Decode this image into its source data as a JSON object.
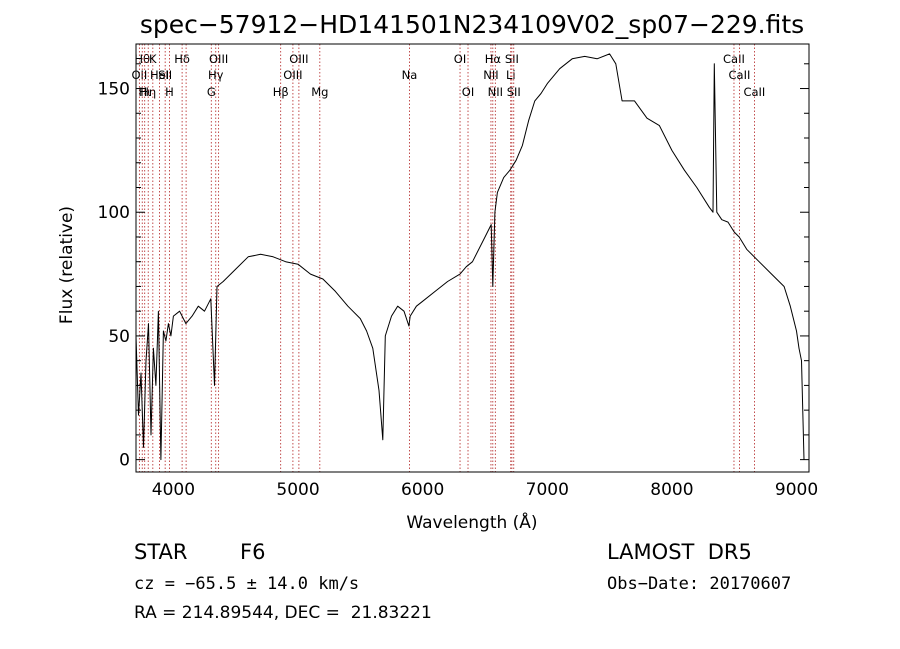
{
  "chart_data": {
    "type": "line",
    "title": "spec−57912−HD141501N234109V02_sp07−229.fits",
    "xlabel": "Wavelength (Å)",
    "ylabel": "Flux (relative)",
    "xlim": [
      3700,
      9100
    ],
    "ylim": [
      -5,
      168
    ],
    "xticks": [
      4000,
      5000,
      6000,
      7000,
      8000,
      9000
    ],
    "xtick_labels": [
      "4000",
      "5000",
      "6000",
      "7000",
      "8000",
      "9000"
    ],
    "yticks": [
      0,
      50,
      100,
      150
    ],
    "ytick_labels": [
      "0",
      "50",
      "100",
      "150"
    ],
    "grid": false,
    "line_color": "#000000",
    "marker_color": "#b22222",
    "series": [
      {
        "x": [
          3700,
          3720,
          3740,
          3760,
          3780,
          3800,
          3820,
          3840,
          3860,
          3880,
          3900,
          3920,
          3940,
          3960,
          3980,
          4000,
          4050,
          4100,
          4150,
          4200,
          4250,
          4300,
          4330,
          4350,
          4400,
          4500,
          4600,
          4700,
          4800,
          4900,
          5000,
          5100,
          5200,
          5300,
          5400,
          5500,
          5550,
          5600,
          5650,
          5680,
          5700,
          5750,
          5800,
          5850,
          5890,
          5900,
          5950,
          6000,
          6100,
          6200,
          6300,
          6350,
          6400,
          6500,
          6550,
          6563,
          6580,
          6600,
          6650,
          6700,
          6750,
          6800,
          6850,
          6900,
          6950,
          7000,
          7100,
          7200,
          7300,
          7400,
          7500,
          7550,
          7600,
          7700,
          7800,
          7900,
          8000,
          8100,
          8200,
          8300,
          8330,
          8340,
          8360,
          8400,
          8450,
          8500,
          8540,
          8600,
          8700,
          8800,
          8900,
          8950,
          9000,
          9020,
          9040,
          9060
        ],
        "y": [
          50,
          18,
          35,
          5,
          40,
          55,
          10,
          45,
          30,
          60,
          0,
          52,
          48,
          55,
          50,
          58,
          60,
          55,
          58,
          62,
          60,
          65,
          30,
          70,
          72,
          77,
          82,
          83,
          82,
          80,
          79,
          75,
          73,
          68,
          62,
          57,
          52,
          45,
          28,
          8,
          50,
          58,
          62,
          60,
          54,
          58,
          62,
          64,
          68,
          72,
          75,
          78,
          80,
          90,
          95,
          70,
          100,
          108,
          114,
          117,
          121,
          127,
          137,
          145,
          148,
          152,
          158,
          162,
          163,
          162,
          164,
          160,
          145,
          145,
          138,
          135,
          125,
          117,
          110,
          102,
          100,
          160,
          100,
          97,
          96,
          92,
          90,
          85,
          80,
          75,
          70,
          62,
          52,
          45,
          40,
          0
        ]
      }
    ],
    "line_markers": [
      {
        "wl": 3727,
        "row": 2,
        "label": "OII"
      },
      {
        "wl": 3750,
        "row": 1,
        "label": "Hθ"
      },
      {
        "wl": 3770,
        "row": 3,
        "label": "Hι"
      },
      {
        "wl": 3798,
        "row": 3,
        "label": "Hη"
      },
      {
        "wl": 3835,
        "row": 1,
        "label": "K"
      },
      {
        "wl": 3889,
        "row": 2,
        "label": "HeI"
      },
      {
        "wl": 3934,
        "row": 2,
        "label": "SII"
      },
      {
        "wl": 3968,
        "row": 3,
        "label": "H"
      },
      {
        "wl": 4070,
        "row": 1,
        "label": "Hδ"
      },
      {
        "wl": 4102,
        "row": 2,
        "label": ""
      },
      {
        "wl": 4304,
        "row": 3,
        "label": "G"
      },
      {
        "wl": 4340,
        "row": 2,
        "label": "Hγ"
      },
      {
        "wl": 4363,
        "row": 1,
        "label": "OIII"
      },
      {
        "wl": 4861,
        "row": 3,
        "label": "Hβ"
      },
      {
        "wl": 4959,
        "row": 2,
        "label": "OIII"
      },
      {
        "wl": 5007,
        "row": 1,
        "label": "OIII"
      },
      {
        "wl": 5175,
        "row": 3,
        "label": "Mg"
      },
      {
        "wl": 5894,
        "row": 2,
        "label": "Na"
      },
      {
        "wl": 6300,
        "row": 1,
        "label": "OI"
      },
      {
        "wl": 6364,
        "row": 3,
        "label": "OI"
      },
      {
        "wl": 6548,
        "row": 2,
        "label": "NII"
      },
      {
        "wl": 6563,
        "row": 1,
        "label": "Hα"
      },
      {
        "wl": 6583,
        "row": 3,
        "label": "NII"
      },
      {
        "wl": 6707,
        "row": 2,
        "label": "Li"
      },
      {
        "wl": 6716,
        "row": 1,
        "label": "SII"
      },
      {
        "wl": 6731,
        "row": 3,
        "label": "SII"
      },
      {
        "wl": 8498,
        "row": 1,
        "label": "CaII"
      },
      {
        "wl": 8542,
        "row": 2,
        "label": "CaII"
      },
      {
        "wl": 8662,
        "row": 3,
        "label": "CaII"
      }
    ]
  },
  "info": {
    "object_class": "STAR",
    "subclass": "F6",
    "survey": "LAMOST  DR5",
    "redshift": "cz = −65.5 ± 14.0 km/s",
    "obs_date": "Obs−Date: 20170607",
    "coords": "RA = 214.89544, DEC =  21.83221"
  }
}
